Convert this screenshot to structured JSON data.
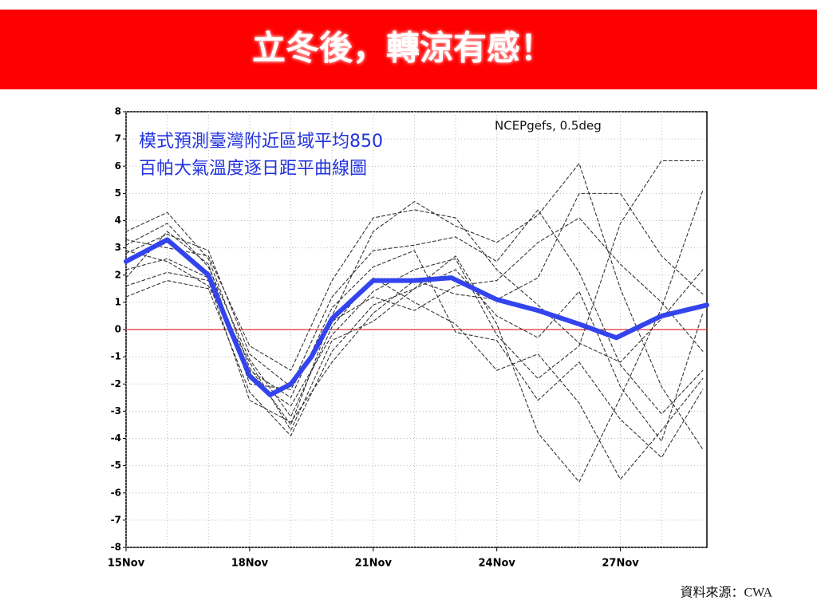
{
  "header": {
    "title": "立冬後，轉涼有感！"
  },
  "chart_data": {
    "type": "line",
    "annotations": [
      "模式預測臺灣附近區域平均850",
      "百帕大氣溫度逐日距平曲線圖",
      "NCEPgefs, 0.5deg"
    ],
    "xlim": [
      15,
      29.1
    ],
    "xticks": [
      {
        "value": 15,
        "label": "15Nov"
      },
      {
        "value": 18,
        "label": "18Nov"
      },
      {
        "value": 21,
        "label": "21Nov"
      },
      {
        "value": 24,
        "label": "24Nov"
      },
      {
        "value": 27,
        "label": "27Nov"
      }
    ],
    "xminorticks": [
      16,
      17,
      19,
      20,
      22,
      23,
      25,
      26,
      28
    ],
    "ylim": [
      -8,
      8
    ],
    "yticks": [
      -8,
      -7,
      -6,
      -5,
      -4,
      -3,
      -2,
      -1,
      0,
      1,
      2,
      3,
      4,
      5,
      6,
      7,
      8
    ],
    "zero_line_color": "#e23030",
    "grid": true,
    "series": [
      {
        "color": "#333333",
        "x": [
          15,
          16,
          17,
          18,
          19,
          20,
          21,
          22,
          23,
          24,
          25,
          26,
          27,
          28,
          29
        ],
        "values": [
          3.6,
          4.3,
          2.6,
          -1.4,
          -3.5,
          0.5,
          3.6,
          4.7,
          3.8,
          3.2,
          4.2,
          6.1,
          1.5,
          -2.1,
          -4.4
        ]
      },
      {
        "color": "#333333",
        "x": [
          15,
          16,
          17,
          18,
          19,
          20,
          21,
          22,
          23,
          24,
          25,
          26,
          27,
          28,
          29
        ],
        "values": [
          1.2,
          1.8,
          1.5,
          -2.3,
          -3.9,
          -0.8,
          0.9,
          1.5,
          2.7,
          0.2,
          -3.8,
          -5.6,
          -2.5,
          0.8,
          5.1
        ]
      },
      {
        "color": "#333333",
        "x": [
          15,
          16,
          17,
          18,
          19,
          20,
          21,
          22,
          23,
          24,
          25,
          26,
          27,
          28,
          29
        ],
        "values": [
          2.8,
          3.5,
          2.9,
          -0.9,
          -2.1,
          1.2,
          2.9,
          3.1,
          3.4,
          2.5,
          4.4,
          2.1,
          -1.3,
          -3.1,
          -1.5
        ]
      },
      {
        "color": "#333333",
        "x": [
          15,
          16,
          17,
          18,
          19,
          20,
          21,
          22,
          23,
          24,
          25,
          26,
          27,
          28,
          29
        ],
        "values": [
          2.2,
          2.6,
          1.9,
          -1.8,
          -2.8,
          -0.2,
          1.4,
          2.2,
          2.6,
          -0.2,
          -1.8,
          -0.6,
          3.9,
          6.2,
          6.2
        ]
      },
      {
        "color": "#333333",
        "x": [
          15,
          16,
          17,
          18,
          19,
          20,
          21,
          22,
          23,
          24,
          25,
          26,
          27,
          28,
          29
        ],
        "values": [
          3.1,
          3.9,
          2.3,
          -1.1,
          -3.2,
          0.1,
          1.9,
          1.0,
          0.2,
          -1.5,
          -0.9,
          -2.7,
          -5.5,
          -3.7,
          -1.8
        ]
      },
      {
        "color": "#333333",
        "x": [
          15,
          16,
          17,
          18,
          19,
          20,
          21,
          22,
          23,
          24,
          25,
          26,
          27,
          28,
          29
        ],
        "values": [
          1.6,
          2.1,
          1.8,
          -2.6,
          -3.4,
          -1.2,
          0.6,
          1.8,
          1.3,
          1.1,
          1.9,
          5.0,
          5.0,
          2.7,
          1.3
        ]
      },
      {
        "color": "#333333",
        "x": [
          15,
          16,
          17,
          18,
          19,
          20,
          21,
          22,
          23,
          24,
          25,
          26,
          27,
          28,
          29
        ],
        "values": [
          2.5,
          3.2,
          2.1,
          -1.5,
          -2.5,
          0.8,
          2.3,
          2.9,
          -0.1,
          -0.4,
          -2.6,
          -1.2,
          -3.3,
          -4.7,
          -2.2
        ]
      },
      {
        "color": "#333333",
        "x": [
          15,
          16,
          17,
          18,
          19,
          20,
          21,
          22,
          23,
          24,
          25,
          26,
          27,
          28,
          29
        ],
        "values": [
          3.3,
          3.0,
          2.7,
          -0.6,
          -1.5,
          1.8,
          4.1,
          4.4,
          4.1,
          2.2,
          0.9,
          -0.5,
          -1.2,
          0.4,
          2.2
        ]
      },
      {
        "color": "#333333",
        "x": [
          15,
          16,
          17,
          18,
          19,
          20,
          21,
          22,
          23,
          24,
          25,
          26,
          27,
          28,
          29
        ],
        "values": [
          1.9,
          3.6,
          2.4,
          -2.0,
          -2.2,
          0.3,
          1.2,
          0.7,
          1.6,
          1.8,
          3.2,
          4.1,
          2.4,
          1.0,
          -0.8
        ]
      },
      {
        "color": "#333333",
        "x": [
          15,
          16,
          17,
          18,
          19,
          20,
          21,
          22,
          23,
          24,
          25,
          26,
          27,
          28,
          29
        ],
        "values": [
          2.9,
          2.5,
          1.6,
          -1.2,
          -3.7,
          -0.4,
          0.3,
          1.5,
          2.2,
          0.5,
          -0.3,
          1.4,
          -2.1,
          -4.1,
          0.6
        ]
      },
      {
        "color": "#3344ee",
        "x": [
          15,
          16,
          17,
          17.5,
          18,
          18.5,
          19,
          19.5,
          20,
          21,
          22,
          22.9,
          24,
          25,
          26,
          26.9,
          28,
          29.1
        ],
        "values": [
          2.5,
          3.3,
          2.0,
          0.1,
          -1.7,
          -2.4,
          -2.0,
          -1.0,
          0.4,
          1.8,
          1.8,
          1.9,
          1.1,
          0.7,
          0.2,
          -0.3,
          0.5,
          0.9
        ]
      }
    ]
  },
  "source": "資料來源：CWA"
}
